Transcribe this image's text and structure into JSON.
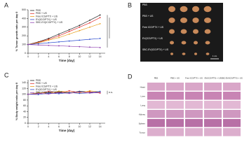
{
  "chart_data": [
    {
      "type": "line",
      "panel_label": "A",
      "ylabel": "% Tumor growth ratio per day 0",
      "xlabel": "Time (day)",
      "x": [
        0,
        2,
        4,
        6,
        8,
        10,
        12,
        14
      ],
      "xlim": [
        0,
        15
      ],
      "xticks": [
        0,
        2,
        4,
        6,
        8,
        10,
        12,
        14
      ],
      "ylim": [
        0,
        500
      ],
      "yticks": [
        0,
        100,
        200,
        300,
        400,
        500
      ],
      "series": [
        {
          "name": "PBS",
          "color": "#222222",
          "values": [
            100,
            130,
            170,
            220,
            270,
            320,
            380,
            440
          ]
        },
        {
          "name": "PBS + US",
          "color": "#e03030",
          "values": [
            100,
            125,
            160,
            200,
            250,
            300,
            350,
            410
          ]
        },
        {
          "name": "Free ICG/PTX + US",
          "color": "#e8a020",
          "values": [
            100,
            120,
            150,
            180,
            220,
            260,
            300,
            340
          ]
        },
        {
          "name": "EV(ICG/PTX) + US",
          "color": "#3050d0",
          "values": [
            100,
            110,
            120,
            130,
            140,
            150,
            160,
            170
          ]
        },
        {
          "name": "SBC-EV(ICG/PTX) + US",
          "color": "#9040b0",
          "values": [
            100,
            95,
            90,
            85,
            80,
            75,
            70,
            65
          ]
        }
      ]
    },
    {
      "type": "line",
      "panel_label": "C",
      "ylabel": "% Body weight ratio per day 0",
      "xlabel": "Time (day)",
      "annotation": "n.s.",
      "x": [
        0,
        2,
        4,
        6,
        8,
        10,
        12,
        14
      ],
      "xlim": [
        0,
        15
      ],
      "xticks": [
        0,
        2,
        4,
        6,
        8,
        10,
        12,
        14
      ],
      "ylim": [
        0,
        150
      ],
      "yticks": [
        0,
        20,
        40,
        60,
        80,
        100,
        120,
        140
      ],
      "series": [
        {
          "name": "PBS",
          "color": "#222222",
          "values": [
            100,
            104,
            106,
            108,
            105,
            110,
            108,
            106
          ]
        },
        {
          "name": "PBS + US",
          "color": "#e03030",
          "values": [
            100,
            102,
            110,
            104,
            112,
            106,
            109,
            104
          ]
        },
        {
          "name": "Free ICG/PTX + US",
          "color": "#e8a020",
          "values": [
            100,
            106,
            103,
            111,
            107,
            104,
            112,
            108
          ]
        },
        {
          "name": "EV(ICG/PTX) + US",
          "color": "#3050d0",
          "values": [
            100,
            99,
            104,
            102,
            106,
            103,
            105,
            110
          ]
        },
        {
          "name": "SBC-EV(ICG/PTX) + US",
          "color": "#9040b0",
          "values": [
            100,
            103,
            101,
            106,
            103,
            108,
            104,
            106
          ]
        }
      ]
    }
  ],
  "panel_b": {
    "label": "B",
    "groups": [
      "PBS",
      "PBS + US",
      "Free ICG/PTX + US",
      "EV(ICG/PTX) + US",
      "SBC-EV(ICG/PTX) + US"
    ],
    "scale_bar": "1 cm"
  },
  "panel_d": {
    "label": "D",
    "columns": [
      "PBS",
      "PBS + US",
      "Free ICG/PTX + US",
      "EV(ICG/PTX) + US",
      "SBC-EV(ICG/PTX) + US"
    ],
    "rows": [
      "Heart",
      "Liver",
      "Lung",
      "Kidney",
      "Spleen",
      "Tumor"
    ]
  }
}
